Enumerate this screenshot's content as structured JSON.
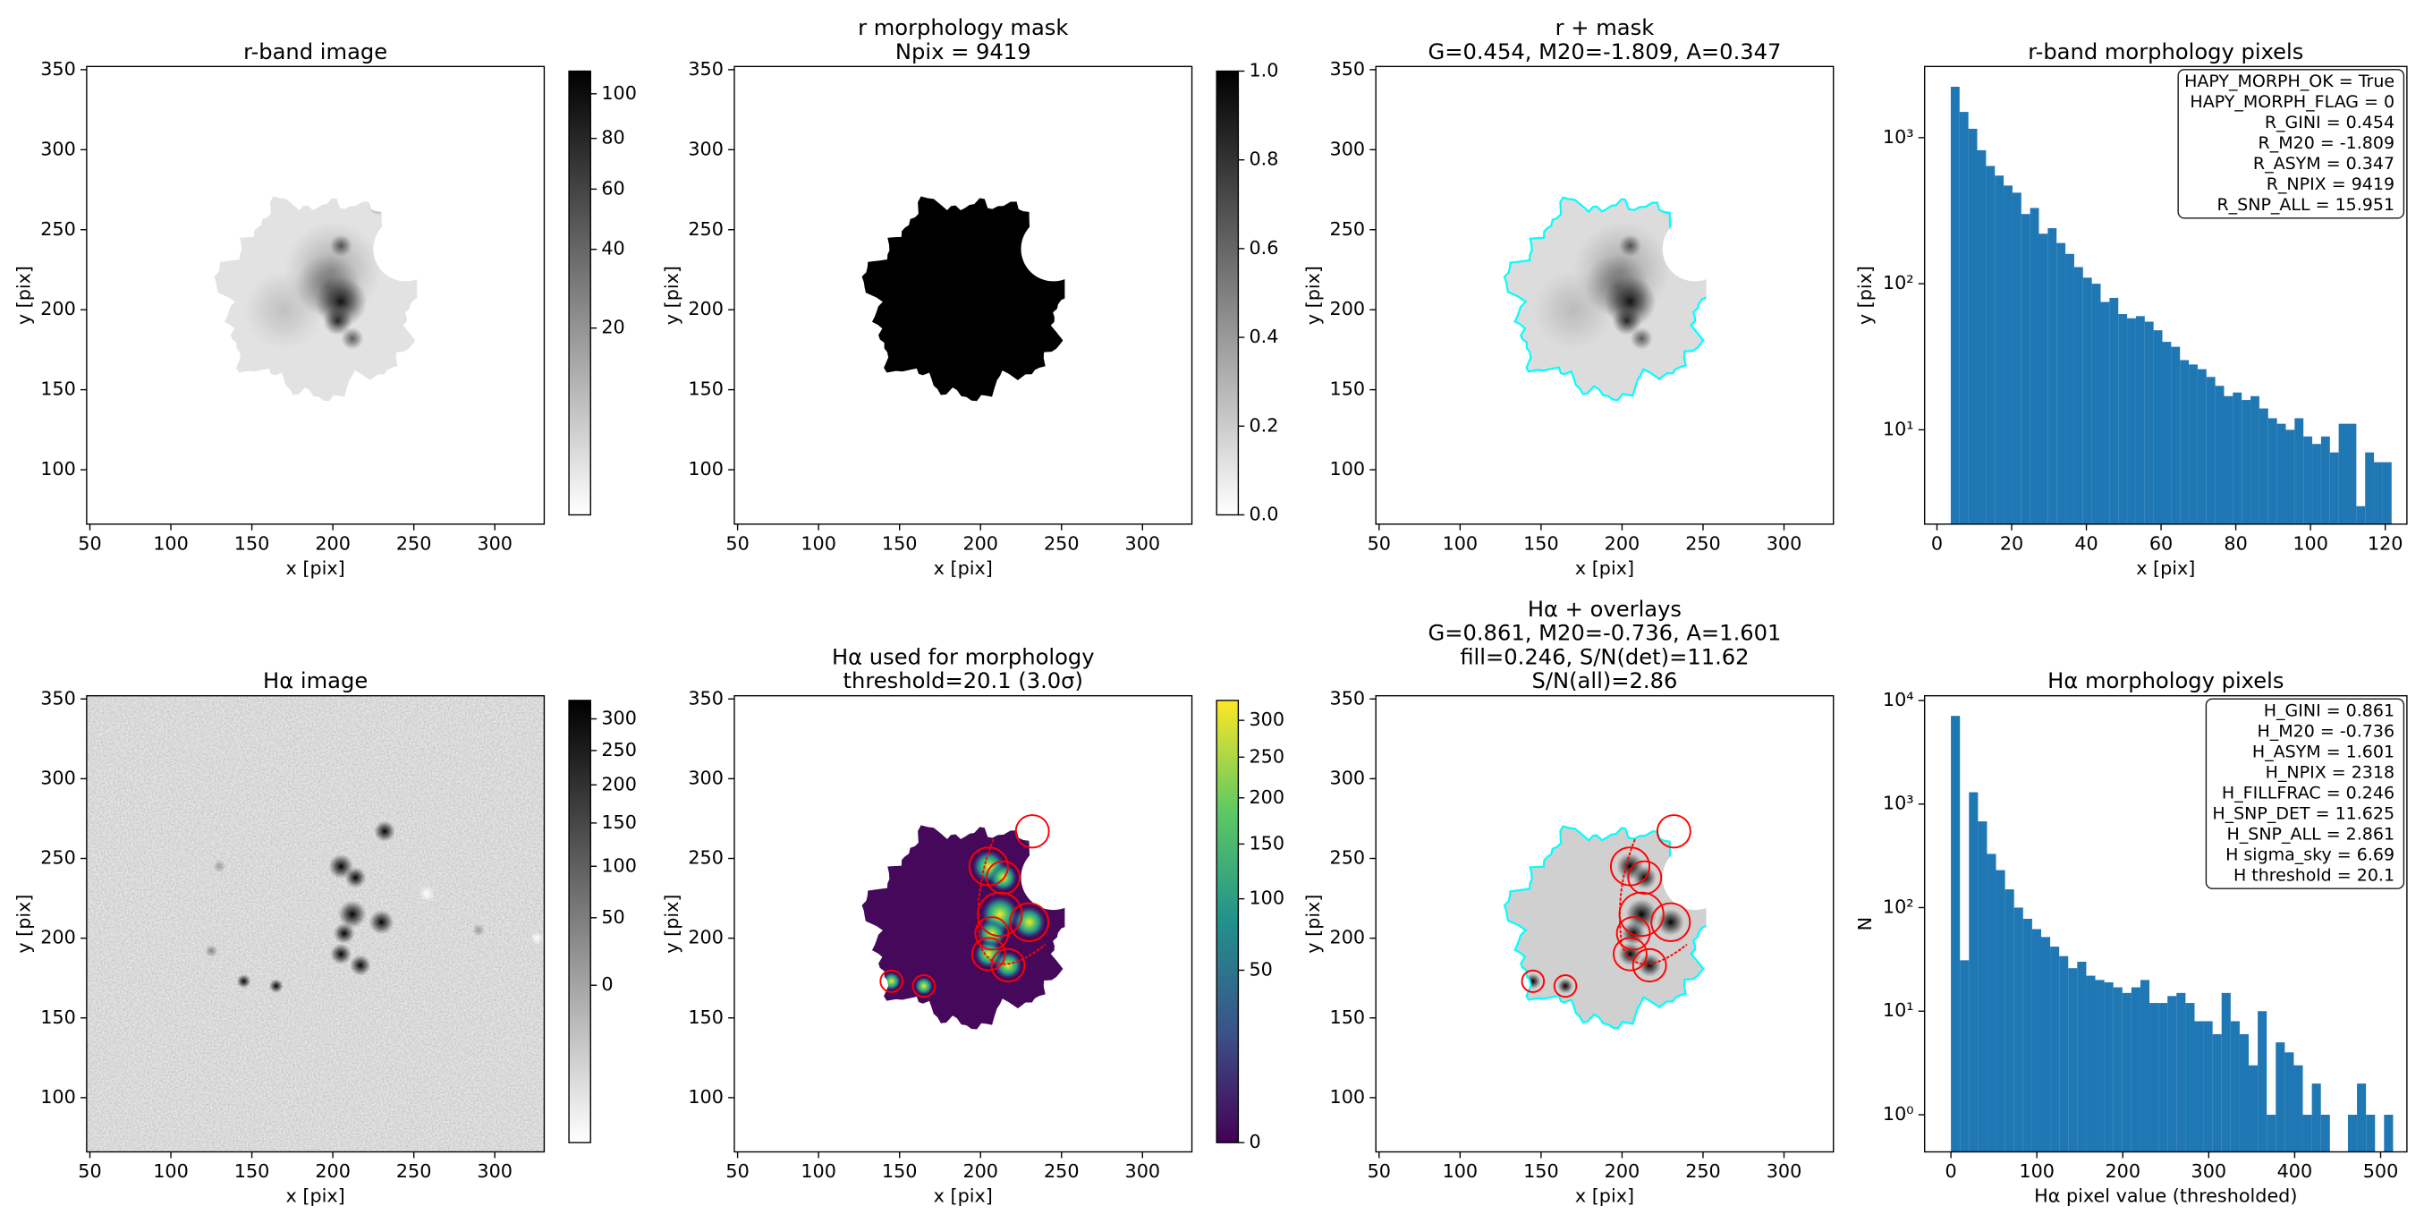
{
  "chart_data": [
    {
      "type": "image",
      "title": [
        "r-band image"
      ],
      "xlabel": "x [pix]",
      "ylabel": "y [pix]",
      "xlim": [
        48,
        330.5
      ],
      "ylim": [
        66,
        352
      ],
      "xticks": [
        50,
        100,
        150,
        200,
        250,
        300
      ],
      "yticks": [
        100,
        150,
        200,
        250,
        300,
        350
      ],
      "colorbar": {
        "cmap": "gray_r",
        "scale": "sqrt",
        "lim": [
          0.4,
          111
        ],
        "ticks": [
          20,
          40,
          60,
          80,
          100
        ]
      }
    },
    {
      "type": "image",
      "title": [
        "r morphology mask",
        "Npix = 9419"
      ],
      "xlabel": "x [pix]",
      "ylabel": "y [pix]",
      "xlim": [
        48,
        330.5
      ],
      "ylim": [
        66,
        352
      ],
      "xticks": [
        50,
        100,
        150,
        200,
        250,
        300
      ],
      "yticks": [
        100,
        150,
        200,
        250,
        300,
        350
      ],
      "colorbar": {
        "cmap": "gray_r",
        "scale": "linear",
        "lim": [
          0,
          1
        ],
        "ticks": [
          {
            "value": 0,
            "label": "0.0"
          },
          0.2,
          0.4,
          0.6,
          0.8,
          {
            "value": 1,
            "label": "1.0"
          }
        ]
      }
    },
    {
      "type": "image",
      "title": [
        "r + mask",
        "G=0.454, M20=-1.809, A=0.347"
      ],
      "xlabel": "x [pix]",
      "ylabel": "y [pix]",
      "xlim": [
        48,
        330.5
      ],
      "ylim": [
        66,
        352
      ],
      "xticks": [
        50,
        100,
        150,
        200,
        250,
        300
      ],
      "yticks": [
        100,
        150,
        200,
        250,
        300,
        350
      ]
    },
    {
      "type": "histogram",
      "title": [
        "r-band morphology pixels"
      ],
      "xlabel": "x [pix]",
      "ylabel": "y [pix]",
      "color": "#1f77b4",
      "log_y": true,
      "bins": [
        3.7,
        6.06,
        8.42,
        10.78,
        13.14,
        15.5,
        17.86,
        20.22,
        22.58,
        24.94,
        27.3,
        29.66,
        32.02,
        34.38,
        36.74,
        39.1,
        41.46,
        43.82,
        46.18,
        48.54,
        50.9,
        53.26,
        55.62,
        57.98,
        60.34,
        62.7,
        65.06,
        67.42,
        69.78,
        72.14,
        74.5,
        76.86,
        79.22,
        81.58,
        83.94,
        86.3,
        88.66,
        91.02,
        93.38,
        95.74,
        98.1,
        100.46,
        102.82,
        105.18,
        107.54,
        109.9,
        112.26,
        114.62,
        116.98,
        119.34,
        121.7
      ],
      "counts": [
        2230,
        1500,
        1150,
        820,
        640,
        550,
        470,
        420,
        300,
        330,
        220,
        240,
        190,
        160,
        130,
        110,
        100,
        75,
        80,
        62,
        58,
        60,
        55,
        48,
        40,
        37,
        30,
        28,
        26,
        23,
        20,
        17,
        18,
        16,
        17,
        14,
        12,
        11,
        10,
        12,
        9,
        8,
        9,
        7,
        11,
        11,
        3,
        7,
        6,
        6
      ],
      "xlim": [
        -3.3,
        125.8
      ],
      "ylim": [
        2.26,
        3070
      ],
      "xticks": [
        0,
        20,
        40,
        60,
        80,
        100,
        120
      ],
      "yticks": [
        {
          "value": 10,
          "label": "10¹"
        },
        {
          "value": 100,
          "label": "10²"
        },
        {
          "value": 1000,
          "label": "10³"
        }
      ],
      "annotation": [
        "HAPY_MORPH_OK = True",
        "HAPY_MORPH_FLAG = 0",
        "R_GINI = 0.454",
        "R_M20 = -1.809",
        "R_ASYM = 0.347",
        "R_NPIX = 9419",
        "R_SNP_ALL = 15.951"
      ]
    },
    {
      "type": "image",
      "title": [
        "Hα image"
      ],
      "xlabel": "x [pix]",
      "ylabel": "y [pix]",
      "xlim": [
        48,
        330.5
      ],
      "ylim": [
        66,
        352
      ],
      "xticks": [
        50,
        100,
        150,
        200,
        250,
        300
      ],
      "yticks": [
        100,
        150,
        200,
        250,
        300,
        350
      ],
      "colorbar": {
        "cmap": "gray_r",
        "scale": "sqrt",
        "lim": [
          -48,
          331
        ],
        "ticks": [
          0,
          50,
          100,
          150,
          200,
          250,
          300
        ]
      }
    },
    {
      "type": "image",
      "title": [
        "Hα used for morphology",
        "threshold=20.1 (3.0σ)"
      ],
      "xlabel": "x [pix]",
      "ylabel": "y [pix]",
      "xlim": [
        48,
        330.5
      ],
      "ylim": [
        66,
        352
      ],
      "xticks": [
        50,
        100,
        150,
        200,
        250,
        300
      ],
      "yticks": [
        100,
        150,
        200,
        250,
        300,
        350
      ],
      "colorbar": {
        "cmap": "viridis",
        "scale": "sqrt",
        "lim": [
          0,
          329
        ],
        "ticks": [
          0,
          50,
          100,
          150,
          200,
          250,
          300
        ]
      }
    },
    {
      "type": "image",
      "title": [
        "Hα + overlays",
        "G=0.861, M20=-0.736, A=1.601",
        "fill=0.246, S/N(det)=11.62",
        "S/N(all)=2.86"
      ],
      "xlabel": "x [pix]",
      "ylabel": "y [pix]",
      "xlim": [
        48,
        330.5
      ],
      "ylim": [
        66,
        352
      ],
      "xticks": [
        50,
        100,
        150,
        200,
        250,
        300
      ],
      "yticks": [
        100,
        150,
        200,
        250,
        300,
        350
      ]
    },
    {
      "type": "histogram",
      "title": [
        "Hα morphology pixels"
      ],
      "xlabel": "Hα pixel value (thresholded)",
      "ylabel": "N",
      "color": "#1f77b4",
      "log_y": true,
      "bins": [
        0,
        10.5,
        21,
        31.5,
        42,
        52.5,
        63,
        73.5,
        84,
        94.5,
        105,
        115.5,
        126,
        136.5,
        147,
        157.5,
        168,
        178.5,
        189,
        199.5,
        210,
        220.5,
        231,
        241.5,
        252,
        262.5,
        273,
        283.5,
        294,
        304.5,
        315,
        325.5,
        336,
        346.5,
        357,
        367.5,
        378,
        388.5,
        399,
        409.5,
        420,
        430.5,
        441,
        451.5,
        462,
        472.5,
        483,
        493.5,
        504,
        514.5
      ],
      "counts": [
        7100,
        31,
        1300,
        680,
        330,
        230,
        150,
        100,
        78,
        62,
        52,
        42,
        34,
        26,
        30,
        22,
        20,
        19,
        17,
        15,
        17,
        20,
        12,
        12,
        14,
        15,
        12,
        8,
        8,
        6,
        15,
        8,
        6,
        3,
        10,
        1,
        5,
        4,
        3,
        1,
        2,
        1,
        0,
        0,
        1,
        2,
        1,
        0,
        1
      ],
      "xlim": [
        -30.6,
        530.6
      ],
      "ylim": [
        0.438,
        11100
      ],
      "xticks": [
        0,
        100,
        200,
        300,
        400,
        500
      ],
      "yticks": [
        {
          "value": 1,
          "label": "10⁰"
        },
        {
          "value": 10,
          "label": "10¹"
        },
        {
          "value": 100,
          "label": "10²"
        },
        {
          "value": 1000,
          "label": "10³"
        },
        {
          "value": 10000,
          "label": "10⁴"
        }
      ],
      "annotation": [
        "H_GINI = 0.861",
        "H_M20 = -0.736",
        "H_ASYM = 1.601",
        "H_NPIX = 2318",
        "H_FILLFRAC = 0.246",
        "H_SNP_DET = 11.625",
        "H_SNP_ALL = 2.861",
        "H sigma_sky = 6.69",
        "H threshold = 20.1"
      ]
    }
  ]
}
